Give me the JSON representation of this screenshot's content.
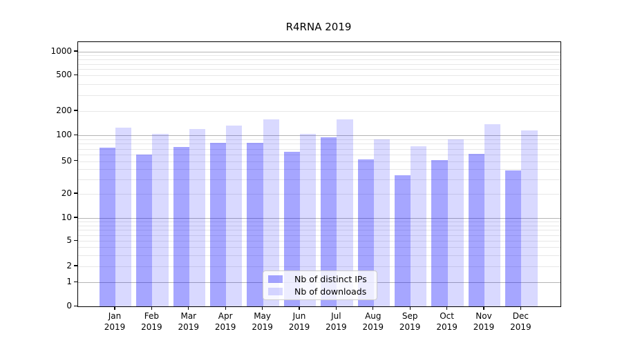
{
  "title": "R4RNA 2019",
  "chart_data": {
    "type": "bar",
    "title": "R4RNA 2019",
    "categories": [
      "Jan",
      "Feb",
      "Mar",
      "Apr",
      "May",
      "Jun",
      "Jul",
      "Aug",
      "Sep",
      "Oct",
      "Nov",
      "Dec"
    ],
    "category_year": "2019",
    "series": [
      {
        "name": "Nb of distinct IPs",
        "color": "rgba(0,0,255,0.35)",
        "values": [
          72,
          60,
          73,
          82,
          82,
          64,
          95,
          53,
          34,
          52,
          61,
          39
        ]
      },
      {
        "name": "Nb of downloads",
        "color": "rgba(0,0,255,0.15)",
        "values": [
          126,
          105,
          120,
          132,
          158,
          104,
          158,
          90,
          75,
          90,
          138,
          116
        ]
      }
    ],
    "yscale": "symlog",
    "y_ticks": [
      1000,
      500,
      200,
      100,
      50,
      20,
      10,
      5,
      2,
      1,
      0
    ],
    "y_major_gridlines": [
      1,
      10,
      100,
      1000
    ],
    "y_minor_gridlines": [
      2,
      3,
      4,
      5,
      6,
      7,
      8,
      9,
      20,
      30,
      40,
      50,
      60,
      70,
      80,
      90,
      200,
      300,
      400,
      500,
      600,
      700,
      800,
      900
    ],
    "ylim": [
      0,
      1300
    ],
    "grid": true,
    "legend_position": "lower center",
    "colors": {
      "major_grid": "#b4b4b4",
      "minor_grid": "#e7e7e7",
      "spine": "#000000"
    }
  }
}
